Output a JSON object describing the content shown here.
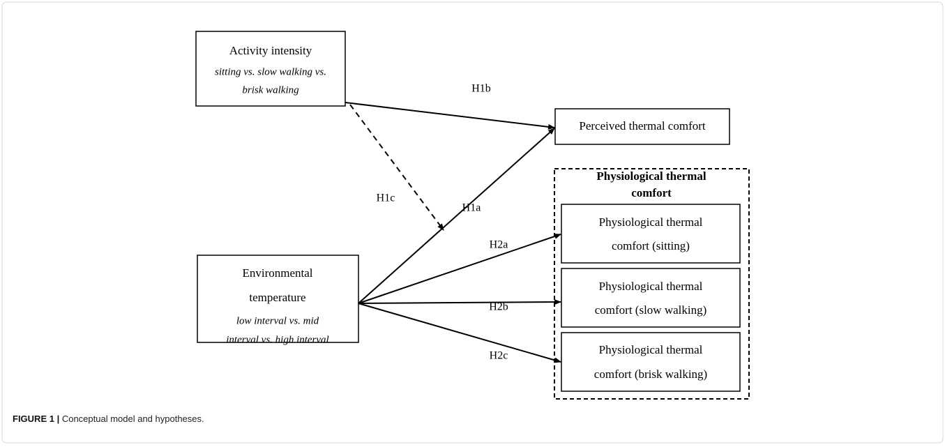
{
  "nodes": [
    {
      "id": "activity",
      "lines": [
        "Activity intensity",
        "sitting vs. slow walking vs.",
        "brisk walking"
      ]
    },
    {
      "id": "perceived",
      "lines": [
        "Perceived thermal comfort"
      ]
    },
    {
      "id": "environment",
      "lines": [
        "Environmental",
        "temperature",
        "low interval vs. mid",
        "interval vs. high interval"
      ]
    },
    {
      "id": "sitting",
      "lines": [
        "Physiological thermal",
        "comfort (sitting)"
      ]
    },
    {
      "id": "slow",
      "lines": [
        "Physiological thermal",
        "comfort (slow walking)"
      ]
    },
    {
      "id": "brisk",
      "lines": [
        "Physiological thermal",
        "comfort (brisk walking)"
      ]
    }
  ],
  "group": {
    "lines": [
      "Physiological thermal",
      "comfort"
    ]
  },
  "edges": [
    {
      "label": "H1b"
    },
    {
      "label": "H1c"
    },
    {
      "label": "H1a"
    },
    {
      "label": "H2a"
    },
    {
      "label": "H2b"
    },
    {
      "label": "H2c"
    }
  ],
  "caption": {
    "label": "FIGURE 1 |",
    "text": "Conceptual  model and hypotheses."
  }
}
